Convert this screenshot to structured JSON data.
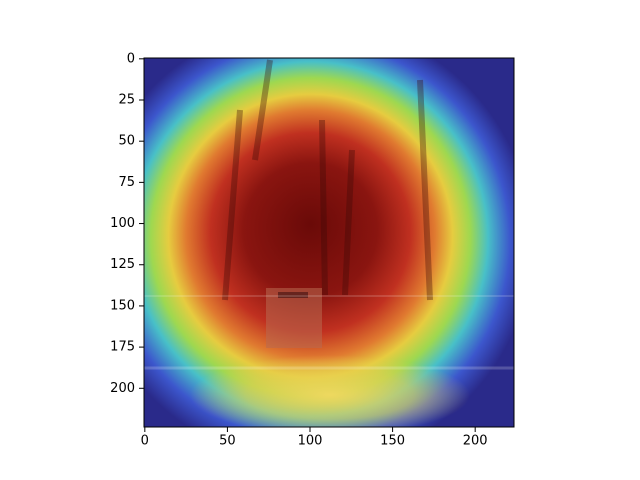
{
  "chart_data": {
    "type": "image",
    "xlim": [
      -0.5,
      223.5
    ],
    "ylim": [
      223.5,
      -0.5
    ],
    "xticks": [
      0,
      50,
      100,
      150,
      200
    ],
    "yticks": [
      0,
      25,
      50,
      75,
      100,
      125,
      150,
      175,
      200
    ]
  }
}
